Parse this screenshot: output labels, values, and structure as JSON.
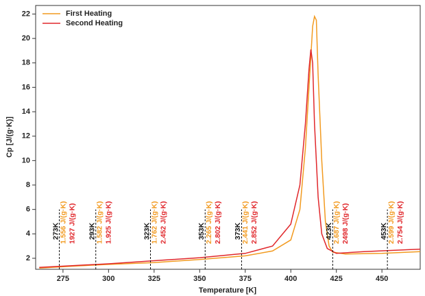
{
  "chart_data": {
    "type": "line",
    "xlabel": "Temperature [K]",
    "ylabel": "Cp [J/(g·K)]",
    "xlim": [
      260,
      471
    ],
    "xticks": [
      275,
      300,
      325,
      350,
      375,
      400,
      425,
      450
    ],
    "ylim": [
      1.1,
      22.7
    ],
    "yticks": [
      2,
      4,
      6,
      8,
      10,
      12,
      14,
      16,
      18,
      20,
      22
    ],
    "legend": "upper left",
    "series": [
      {
        "name": "First Heating",
        "color": "#f29a1f",
        "x": [
          262,
          280,
          300,
          325,
          350,
          375,
          390,
          400,
          405,
          408,
          410,
          412,
          413,
          414,
          415,
          417,
          419,
          421,
          423,
          430,
          450,
          471
        ],
        "values": [
          1.2,
          1.35,
          1.5,
          1.65,
          1.9,
          2.2,
          2.6,
          3.5,
          6,
          11,
          16,
          21,
          21.8,
          21.5,
          17,
          10,
          5,
          3,
          2.5,
          2.35,
          2.4,
          2.55
        ]
      },
      {
        "name": "Second Heating",
        "color": "#e0262a",
        "x": [
          262,
          280,
          300,
          325,
          350,
          375,
          390,
          400,
          405,
          408,
          410,
          411,
          412,
          413,
          415,
          417,
          420,
          425,
          440,
          471
        ],
        "values": [
          1.25,
          1.4,
          1.55,
          1.8,
          2.05,
          2.4,
          3,
          4.8,
          8,
          13,
          17.5,
          19.1,
          18,
          13,
          7,
          4,
          2.8,
          2.4,
          2.55,
          2.75
        ]
      }
    ],
    "annotations": [
      {
        "x": 273,
        "label": "273K",
        "first": "1.556 J/(g·K)",
        "second": "1927 J/(g·K)"
      },
      {
        "x": 293,
        "label": "293K",
        "first": "1.582 J/(g·K)",
        "second": "1.925 J/(g·K)"
      },
      {
        "x": 323,
        "label": "323K",
        "first": "1.762 J/(g·K)",
        "second": "2.452 J/(g·K)"
      },
      {
        "x": 353,
        "label": "353K",
        "first": "2.265 J/(g·K)",
        "second": "2.802 J/(g·K)"
      },
      {
        "x": 373,
        "label": "373K",
        "first": "2.441 J/(g·K)",
        "second": "2.852 J/(g·K)"
      },
      {
        "x": 423,
        "label": "423K",
        "first": "2.687 J/(g·K)",
        "second": "2498 J/(g·K)"
      },
      {
        "x": 453,
        "label": "453K",
        "first": "2.599 J/(g·K)",
        "second": "2.754 J/(g·K)"
      }
    ]
  }
}
